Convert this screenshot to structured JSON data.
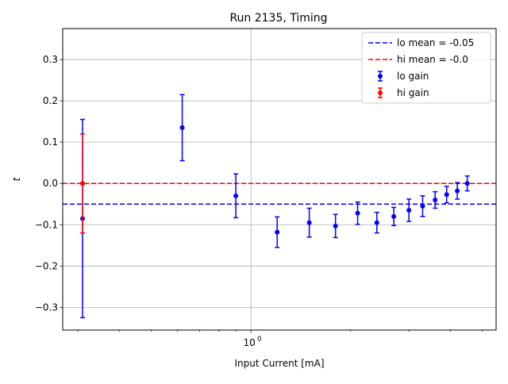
{
  "chart_data": {
    "type": "scatter",
    "title": "Run 2135, Timing",
    "xlabel": "Input Current [mA]",
    "ylabel": "t",
    "xscale": "log",
    "xlim": [
      0.27,
      5.5
    ],
    "ylim": [
      -0.355,
      0.375
    ],
    "x_ticks": [
      {
        "value": 1,
        "label": "10",
        "exp": "0"
      }
    ],
    "y_ticks": [
      {
        "value": 0.3,
        "label": "0.3"
      },
      {
        "value": 0.2,
        "label": "0.2"
      },
      {
        "value": 0.1,
        "label": "0.1"
      },
      {
        "value": 0.0,
        "label": "0.0"
      },
      {
        "value": -0.1,
        "label": "−0.1"
      },
      {
        "value": -0.2,
        "label": "−0.2"
      },
      {
        "value": -0.3,
        "label": "−0.3"
      }
    ],
    "grid": true,
    "legend_position": "top-right",
    "series": [
      {
        "name": "lo gain",
        "color": "#0000ff",
        "points": [
          {
            "x": 0.31,
            "y": -0.085,
            "err": 0.24
          },
          {
            "x": 0.62,
            "y": 0.135,
            "err": 0.08
          },
          {
            "x": 0.9,
            "y": -0.03,
            "err": 0.053
          },
          {
            "x": 1.2,
            "y": -0.118,
            "err": 0.037
          },
          {
            "x": 1.5,
            "y": -0.095,
            "err": 0.035
          },
          {
            "x": 1.8,
            "y": -0.103,
            "err": 0.028
          },
          {
            "x": 2.1,
            "y": -0.072,
            "err": 0.027
          },
          {
            "x": 2.4,
            "y": -0.095,
            "err": 0.025
          },
          {
            "x": 2.7,
            "y": -0.08,
            "err": 0.022
          },
          {
            "x": 3.0,
            "y": -0.065,
            "err": 0.027
          },
          {
            "x": 3.3,
            "y": -0.055,
            "err": 0.025
          },
          {
            "x": 3.6,
            "y": -0.04,
            "err": 0.02
          },
          {
            "x": 3.9,
            "y": -0.027,
            "err": 0.02
          },
          {
            "x": 4.2,
            "y": -0.018,
            "err": 0.02
          },
          {
            "x": 4.5,
            "y": 0.0,
            "err": 0.018
          }
        ]
      },
      {
        "name": "hi gain",
        "color": "#ff0000",
        "points": [
          {
            "x": 0.31,
            "y": 0.0,
            "err": 0.12
          }
        ]
      }
    ],
    "reference_lines": [
      {
        "name": "lo mean = -0.05",
        "y": -0.05,
        "color": "#0000ff",
        "style": "dashed"
      },
      {
        "name": "hi mean = -0.0",
        "y": 0.0,
        "color": "#ff0000",
        "style": "dashed"
      }
    ]
  }
}
